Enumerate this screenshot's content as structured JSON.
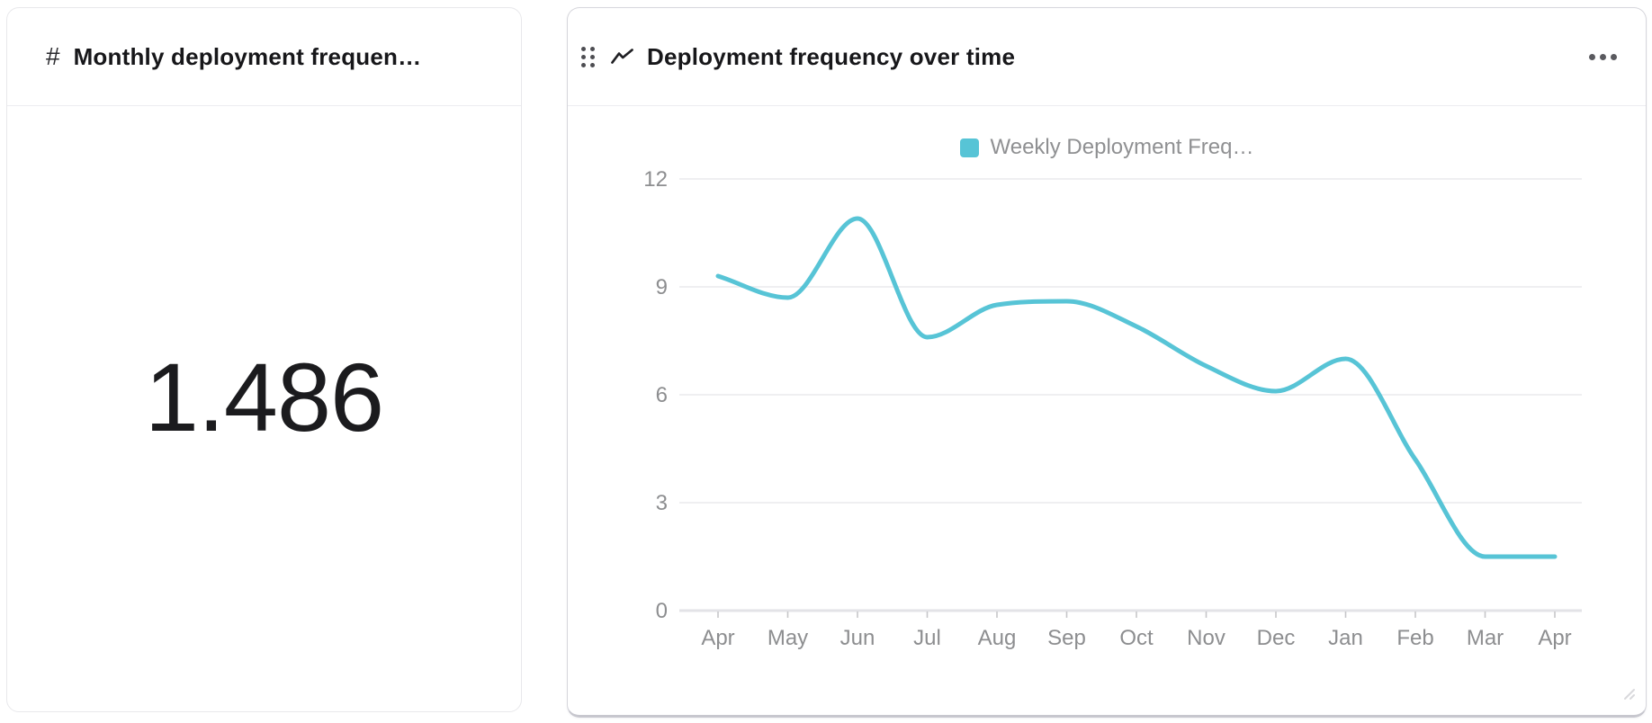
{
  "metric_card": {
    "icon_glyph": "#",
    "title": "Monthly deployment frequen…",
    "value": "1.486"
  },
  "chart_card": {
    "title": "Deployment frequency over time"
  },
  "icons": {
    "metric_type": "number-hash-icon",
    "widget_drag": "drag-handle-dots-icon",
    "chart_type": "line-trend-icon",
    "card_menu": "more-horizontal-icon",
    "corner": "resize-handle-icon"
  },
  "colors": {
    "series_teal": "#57c4d6",
    "grid_line": "#efeff1",
    "axis_line": "#e3e3e7",
    "axis_text": "#8d8e90",
    "tick_mark": "#c6c6c9"
  },
  "chart_data": {
    "type": "line",
    "title": "Deployment frequency over time",
    "categories": [
      "Apr",
      "May",
      "Jun",
      "Jul",
      "Aug",
      "Sep",
      "Oct",
      "Nov",
      "Dec",
      "Jan",
      "Feb",
      "Mar",
      "Apr"
    ],
    "series": [
      {
        "name": "Weekly Deployment Freq…",
        "color": "#57c4d6",
        "values": [
          9.3,
          8.7,
          10.9,
          7.6,
          8.5,
          8.6,
          7.9,
          6.8,
          6.1,
          7.0,
          4.2,
          1.5,
          1.5
        ]
      }
    ],
    "xlabel": "",
    "ylabel": "",
    "ylim": [
      0,
      12
    ],
    "y_ticks": [
      0,
      3,
      6,
      9,
      12
    ],
    "smooth": true,
    "grid": "horizontal",
    "legend_position": "top"
  }
}
